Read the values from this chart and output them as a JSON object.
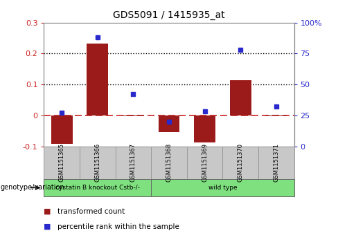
{
  "title": "GDS5091 / 1415935_at",
  "samples": [
    "GSM1151365",
    "GSM1151366",
    "GSM1151367",
    "GSM1151368",
    "GSM1151369",
    "GSM1151370",
    "GSM1151371"
  ],
  "bar_values": [
    -0.092,
    0.232,
    -0.003,
    -0.055,
    -0.087,
    0.113,
    -0.003
  ],
  "scatter_values": [
    0.27,
    0.88,
    0.42,
    0.2,
    0.28,
    0.78,
    0.32
  ],
  "left_ylim": [
    -0.1,
    0.3
  ],
  "right_ylim": [
    0,
    100
  ],
  "left_yticks": [
    -0.1,
    0.0,
    0.1,
    0.2,
    0.3
  ],
  "right_yticks": [
    0,
    25,
    50,
    75,
    100
  ],
  "right_yticklabels": [
    "0",
    "25",
    "50",
    "75",
    "100%"
  ],
  "bar_color": "#9B1A1A",
  "scatter_color": "#2929CC",
  "dashed_line_color": "#CC2222",
  "dotted_line_color": "#000000",
  "dotted_line_values": [
    0.1,
    0.2
  ],
  "genotype_labels": [
    "cystatin B knockout Cstb-/-",
    "wild type"
  ],
  "genotype_groups": [
    3,
    4
  ],
  "legend_bar_label": "transformed count",
  "legend_scatter_label": "percentile rank within the sample",
  "genotype_text": "genotype/variation",
  "background_color": "#FFFFFF",
  "tick_label_color_left": "#CC2222",
  "tick_label_color_right": "#2929CC",
  "green_color": "#7EE07E",
  "grey_box_color": "#C8C8C8",
  "grey_box_edge": "#999999"
}
